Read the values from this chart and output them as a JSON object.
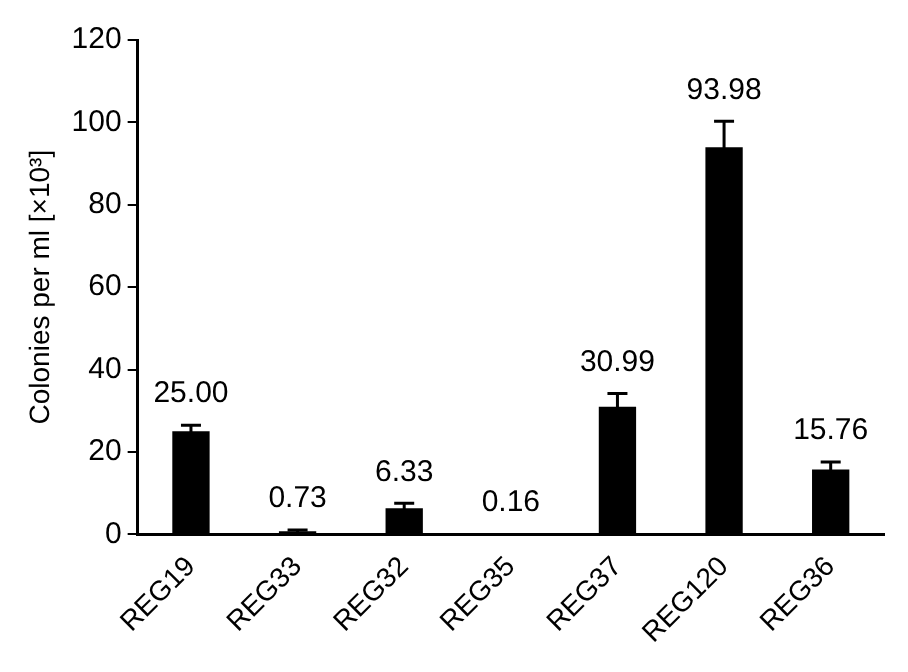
{
  "chart_data": {
    "type": "bar",
    "ylabel": "Colonies per ml [×10³]",
    "categories": [
      "REG19",
      "REG33",
      "REG32",
      "REG35",
      "REG37",
      "REG120",
      "REG36"
    ],
    "values": [
      25.0,
      0.73,
      6.33,
      0.16,
      30.99,
      93.98,
      15.76
    ],
    "value_labels": [
      "25.00",
      "0.73",
      "6.33",
      "0.16",
      "30.99",
      "93.98",
      "15.76"
    ],
    "errors": [
      1.5,
      0.3,
      1.2,
      null,
      3.2,
      6.3,
      1.8
    ],
    "color": "#000000",
    "ylim": [
      0,
      120
    ],
    "yticks": [
      0,
      20,
      40,
      60,
      80,
      100,
      120
    ],
    "grid": false,
    "legend": false
  }
}
